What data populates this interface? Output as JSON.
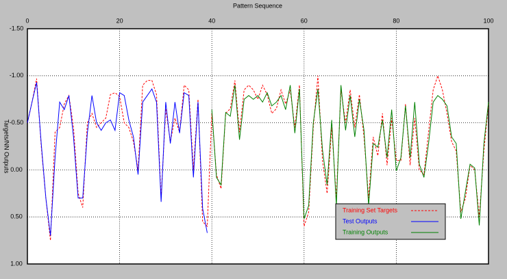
{
  "chart_data": {
    "type": "line",
    "title": "Pattern Sequence",
    "y_label": "Targets/NN Outputs",
    "x": [
      0,
      1,
      2,
      3,
      4,
      5,
      6,
      7,
      8,
      9,
      10,
      11,
      12,
      13,
      14,
      15,
      16,
      17,
      18,
      19,
      20,
      21,
      22,
      23,
      24,
      25,
      26,
      27,
      28,
      29,
      30,
      31,
      32,
      33,
      34,
      35,
      36,
      37,
      38,
      39,
      40,
      41,
      42,
      43,
      44,
      45,
      46,
      47,
      48,
      49,
      50,
      51,
      52,
      53,
      54,
      55,
      56,
      57,
      58,
      59,
      60,
      61,
      62,
      63,
      64,
      65,
      66,
      67,
      68,
      69,
      70,
      71,
      72,
      73,
      74,
      75,
      76,
      77,
      78,
      79,
      80,
      81,
      82,
      83,
      84,
      85,
      86,
      87,
      88,
      89,
      90,
      91,
      92,
      93,
      94,
      95,
      96,
      97,
      98,
      99,
      100
    ],
    "series": [
      {
        "name": "Training Set Targets",
        "color": "#ff0000",
        "dashed": true,
        "values": [
          -0.5,
          -0.72,
          -0.97,
          -0.25,
          0.3,
          0.75,
          -0.4,
          -0.45,
          -0.7,
          -0.79,
          -0.45,
          0.25,
          0.4,
          -0.5,
          -0.6,
          -0.45,
          -0.5,
          -0.55,
          -0.8,
          -0.82,
          -0.78,
          -0.5,
          -0.45,
          -0.3,
          0.0,
          -0.9,
          -0.95,
          -0.95,
          -0.8,
          0.3,
          -0.65,
          -0.3,
          -0.55,
          -0.4,
          -0.9,
          -0.85,
          0.0,
          -0.75,
          0.55,
          0.6,
          -0.6,
          0.05,
          0.2,
          -0.6,
          -0.65,
          -0.95,
          -0.4,
          -0.85,
          -0.9,
          -0.85,
          -0.75,
          -0.9,
          -0.8,
          -0.6,
          -0.65,
          -0.85,
          -0.7,
          -0.85,
          -0.45,
          -0.9,
          0.6,
          0.45,
          -0.45,
          -1.0,
          -0.1,
          0.25,
          -0.45,
          0.3,
          -0.85,
          -0.5,
          -0.85,
          -0.45,
          -0.8,
          -0.35,
          0.3,
          -0.35,
          -0.15,
          -0.6,
          -0.05,
          -0.55,
          -0.1,
          -0.1,
          -0.7,
          -0.05,
          -0.55,
          0.0,
          0.05,
          -0.4,
          -0.85,
          -1.0,
          -0.85,
          -0.6,
          -0.3,
          -0.2,
          0.45,
          0.3,
          -0.05,
          0.0,
          0.5,
          -0.2,
          -0.7
        ]
      },
      {
        "name": "Test Outputs",
        "color": "#0000ff",
        "dashed": false,
        "values": [
          -0.5,
          -0.72,
          -0.93,
          -0.28,
          0.3,
          0.7,
          -0.13,
          -0.72,
          -0.64,
          -0.79,
          -0.35,
          0.3,
          0.3,
          -0.39,
          -0.79,
          -0.5,
          -0.42,
          -0.5,
          -0.53,
          -0.42,
          -0.82,
          -0.79,
          -0.53,
          -0.35,
          0.05,
          -0.72,
          -0.79,
          -0.86,
          -0.72,
          0.34,
          -0.72,
          -0.28,
          -0.72,
          -0.39,
          -0.82,
          -0.79,
          0.08,
          -0.72,
          0.41,
          0.67,
          null,
          null,
          null,
          null,
          null,
          null,
          null,
          null,
          null,
          null,
          null,
          null,
          null,
          null,
          null,
          null,
          null,
          null,
          null,
          null,
          null,
          null,
          null,
          null,
          null,
          null,
          null,
          null,
          null,
          null,
          null,
          null,
          null,
          null,
          null,
          null,
          null,
          null,
          null,
          null,
          null,
          null,
          null,
          null,
          null,
          null,
          null,
          null,
          null,
          null,
          null,
          null,
          null,
          null,
          null,
          null,
          null,
          null,
          null,
          null,
          null
        ]
      },
      {
        "name": "Training Outputs",
        "color": "#008000",
        "dashed": false,
        "values": [
          null,
          null,
          null,
          null,
          null,
          null,
          null,
          null,
          null,
          null,
          null,
          null,
          null,
          null,
          null,
          null,
          null,
          null,
          null,
          null,
          null,
          null,
          null,
          null,
          null,
          null,
          null,
          null,
          null,
          null,
          null,
          null,
          null,
          null,
          null,
          null,
          null,
          null,
          null,
          null,
          -0.64,
          0.08,
          0.16,
          -0.61,
          -0.57,
          -0.9,
          -0.32,
          -0.75,
          -0.79,
          -0.75,
          -0.79,
          -0.72,
          -0.82,
          -0.68,
          -0.72,
          -0.79,
          -0.64,
          -0.9,
          -0.39,
          -0.86,
          0.52,
          0.38,
          -0.5,
          -0.86,
          -0.21,
          0.16,
          -0.53,
          0.38,
          -0.9,
          -0.42,
          -0.79,
          -0.35,
          -0.75,
          -0.42,
          0.38,
          -0.28,
          -0.24,
          -0.53,
          -0.13,
          -0.64,
          0.01,
          -0.13,
          -0.68,
          -0.13,
          -0.72,
          -0.06,
          0.08,
          -0.28,
          -0.72,
          -0.79,
          -0.75,
          -0.68,
          -0.35,
          -0.28,
          0.52,
          0.23,
          -0.06,
          -0.02,
          0.59,
          -0.28,
          -0.72
        ]
      }
    ],
    "xlim": [
      0,
      100
    ],
    "xticks": [
      0,
      20,
      40,
      60,
      80,
      100
    ],
    "ylim": [
      -1.5,
      1.0
    ],
    "y_inverted": true,
    "yticks": [
      {
        "value": -1.5,
        "label": "-1.50"
      },
      {
        "value": -1.0,
        "label": "-1.00"
      },
      {
        "value": -0.5,
        "label": "-0.50"
      },
      {
        "value": 0,
        "label": "0.00"
      },
      {
        "value": 0.5,
        "label": "0.50"
      },
      {
        "value": 1.0,
        "label": "1.00"
      }
    ],
    "grid": true,
    "legend": "lower right"
  }
}
